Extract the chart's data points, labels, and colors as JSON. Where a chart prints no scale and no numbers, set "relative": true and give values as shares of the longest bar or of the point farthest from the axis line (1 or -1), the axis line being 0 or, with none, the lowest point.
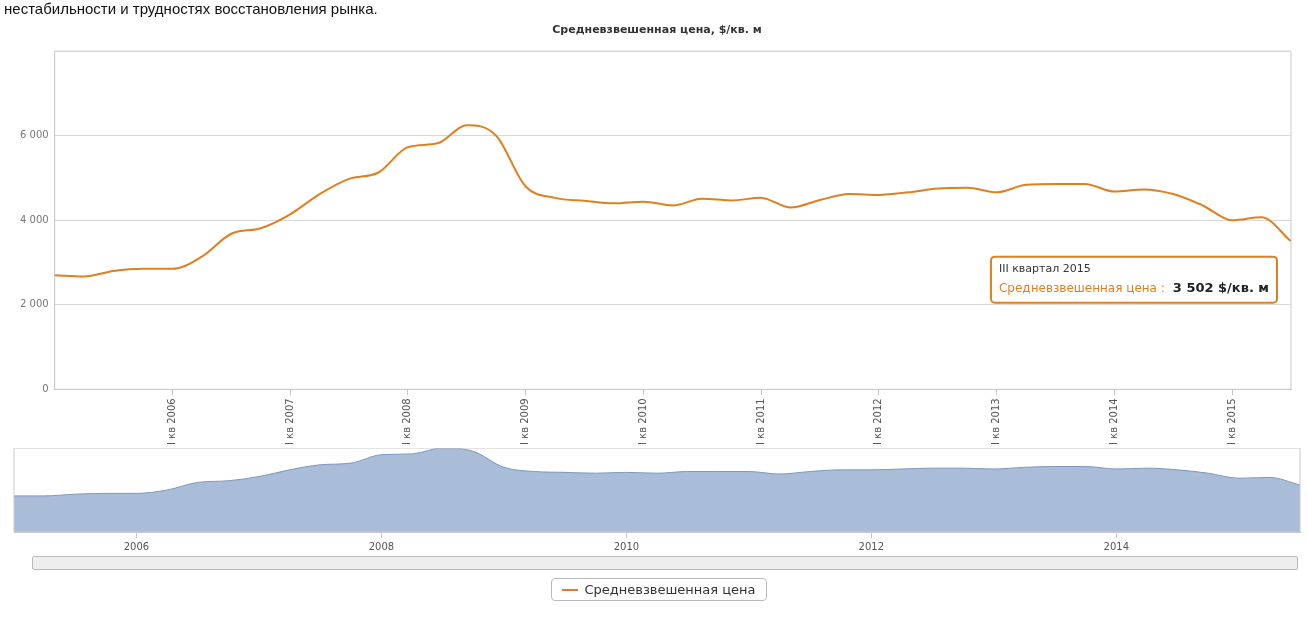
{
  "chart_data": [
    {
      "type": "line",
      "title": "Средневзвешенная цена, $/кв. м",
      "categories": [
        null,
        null,
        null,
        null,
        "I кв 2006",
        null,
        null,
        null,
        "I кв 2007",
        null,
        null,
        null,
        "I кв 2008",
        null,
        null,
        null,
        "I кв 2009",
        null,
        null,
        null,
        "I кв 2010",
        null,
        null,
        null,
        "I кв 2011",
        null,
        null,
        null,
        "I кв 2012",
        null,
        null,
        null,
        "I кв 2013",
        null,
        null,
        null,
        "I кв 2014",
        null,
        null,
        null,
        "I кв 2015",
        null,
        null
      ],
      "series": [
        {
          "name": "Средневзвешенная цена",
          "color": "#e07f1f",
          "values": [
            2700,
            2670,
            2800,
            2850,
            2850,
            3140,
            3680,
            3810,
            4140,
            4620,
            4980,
            5130,
            5730,
            5820,
            6250,
            6000,
            4800,
            4530,
            4460,
            4400,
            4440,
            4350,
            4510,
            4470,
            4530,
            4300,
            4480,
            4620,
            4600,
            4660,
            4750,
            4770,
            4660,
            4840,
            4860,
            4860,
            4680,
            4730,
            4620,
            4350,
            4000,
            4070,
            3502
          ]
        }
      ],
      "ylim": [
        0,
        8000
      ],
      "yticks": [
        0,
        {
          "value": 2000,
          "label": "2 000"
        },
        {
          "value": 4000,
          "label": "4 000"
        },
        {
          "value": 6000,
          "label": "6 000"
        }
      ],
      "grid": "y",
      "legend": "bottom",
      "marker": "none",
      "annotations": [
        "нестабильности и трудностях восстановления рынка.",
        "III квартал 2015\nСредневзвешенная цена :\n3 502 $/кв. м"
      ]
    },
    {
      "type": "area",
      "relative": true,
      "categories": [
        null,
        null,
        null,
        null,
        "2006",
        null,
        null,
        null,
        null,
        null,
        null,
        null,
        "2008",
        null,
        null,
        null,
        null,
        null,
        null,
        null,
        "2010",
        null,
        null,
        null,
        null,
        null,
        null,
        null,
        "2012",
        null,
        null,
        null,
        null,
        null,
        null,
        null,
        "2014",
        null,
        null,
        null,
        null,
        null,
        null
      ],
      "series": [
        {
          "color": "#a9bcd8",
          "values": [
            0.43,
            0.43,
            0.45,
            0.46,
            0.46,
            0.5,
            0.59,
            0.61,
            0.66,
            0.74,
            0.8,
            0.82,
            0.92,
            0.93,
            1,
            0.96,
            0.77,
            0.72,
            0.71,
            0.7,
            0.71,
            0.7,
            0.72,
            0.72,
            0.72,
            0.69,
            0.72,
            0.74,
            0.74,
            0.75,
            0.76,
            0.76,
            0.75,
            0.77,
            0.78,
            0.78,
            0.75,
            0.76,
            0.74,
            0.7,
            0.64,
            0.65,
            0.56
          ]
        }
      ]
    }
  ]
}
